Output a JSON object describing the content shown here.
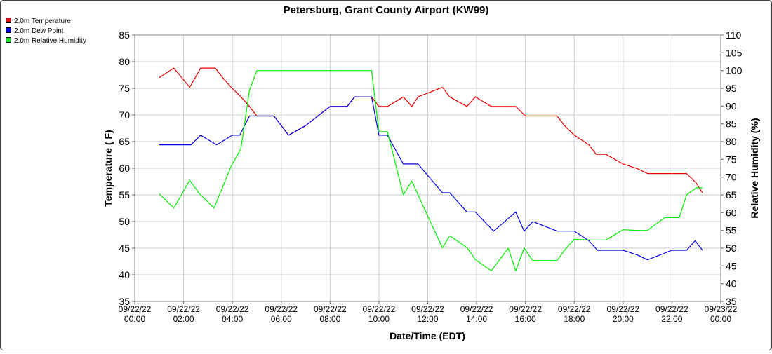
{
  "chart_data": {
    "type": "line",
    "title": "Petersburg, Grant County Airport (KW99)",
    "xlabel": "Date/Time (EDT)",
    "ylabel_left": "Temperature ( F)",
    "ylabel_right": "Relative Humidity (%)",
    "xlim_hours": [
      0,
      24
    ],
    "ylim_left": [
      35,
      85
    ],
    "ylim_right": [
      35,
      110
    ],
    "grid": true,
    "legend_position": "top-left",
    "x_ticks": [
      {
        "h": 0,
        "line1": "09/22/22",
        "line2": "00:00"
      },
      {
        "h": 2,
        "line1": "09/22/22",
        "line2": "02:00"
      },
      {
        "h": 4,
        "line1": "09/22/22",
        "line2": "04:00"
      },
      {
        "h": 6,
        "line1": "09/22/22",
        "line2": "06:00"
      },
      {
        "h": 8,
        "line1": "09/22/22",
        "line2": "08:00"
      },
      {
        "h": 10,
        "line1": "09/22/22",
        "line2": "10:00"
      },
      {
        "h": 12,
        "line1": "09/22/22",
        "line2": "12:00"
      },
      {
        "h": 14,
        "line1": "09/22/22",
        "line2": "14:00"
      },
      {
        "h": 16,
        "line1": "09/22/22",
        "line2": "16:00"
      },
      {
        "h": 18,
        "line1": "09/22/22",
        "line2": "18:00"
      },
      {
        "h": 20,
        "line1": "09/22/22",
        "line2": "20:00"
      },
      {
        "h": 22,
        "line1": "09/22/22",
        "line2": "22:00"
      },
      {
        "h": 24,
        "line1": "09/23/22",
        "line2": "00:00"
      }
    ],
    "y_ticks_left": [
      35,
      40,
      45,
      50,
      55,
      60,
      65,
      70,
      75,
      80,
      85
    ],
    "y_ticks_right": [
      35,
      40,
      45,
      50,
      55,
      60,
      65,
      70,
      75,
      80,
      85,
      90,
      95,
      100,
      105,
      110
    ],
    "series": [
      {
        "name": "2.0m Temperature",
        "axis": "left",
        "color": "#ee0000",
        "x": [
          1.0,
          1.6,
          2.25,
          2.7,
          3.05,
          3.3,
          3.6,
          3.95,
          4.35,
          4.7,
          5.0,
          5.7,
          6.3,
          7.0,
          8.0,
          8.7,
          9.0,
          9.35,
          9.7,
          10.0,
          10.35,
          11.0,
          11.35,
          11.6,
          12.6,
          12.9,
          13.6,
          13.95,
          14.6,
          15.3,
          15.6,
          16.0,
          16.3,
          17.3,
          17.6,
          18.0,
          18.6,
          18.9,
          19.3,
          20.0,
          20.6,
          21.0,
          22.0,
          22.3,
          22.6,
          23.0,
          23.25
        ],
        "y": [
          77.0,
          78.8,
          75.2,
          78.8,
          78.8,
          78.8,
          77.0,
          75.2,
          73.4,
          71.6,
          69.8,
          69.8,
          66.2,
          68.0,
          71.6,
          71.6,
          73.4,
          73.4,
          73.4,
          71.6,
          71.6,
          73.4,
          71.6,
          73.4,
          75.2,
          73.4,
          71.6,
          73.4,
          71.6,
          71.6,
          71.6,
          69.8,
          69.8,
          69.8,
          68.0,
          66.2,
          64.4,
          62.6,
          62.6,
          60.8,
          59.9,
          59.0,
          59.0,
          59.0,
          59.0,
          57.2,
          55.4
        ]
      },
      {
        "name": "2.0m Dew Point",
        "axis": "left",
        "color": "#0000ee",
        "x": [
          1.0,
          2.0,
          2.3,
          2.7,
          3.35,
          4.0,
          4.3,
          4.7,
          5.0,
          5.7,
          6.3,
          7.0,
          8.0,
          8.7,
          9.0,
          9.7,
          10.0,
          10.35,
          11.0,
          11.6,
          12.6,
          12.9,
          13.6,
          13.95,
          14.7,
          15.6,
          15.95,
          16.3,
          17.3,
          18.0,
          18.6,
          18.95,
          19.3,
          20.0,
          20.6,
          21.0,
          22.0,
          22.6,
          22.95,
          23.25
        ],
        "y": [
          64.4,
          64.4,
          64.4,
          66.2,
          64.4,
          66.2,
          66.2,
          69.8,
          69.8,
          69.8,
          66.2,
          68.0,
          71.6,
          71.6,
          73.4,
          73.4,
          66.2,
          66.2,
          60.8,
          60.8,
          55.4,
          55.4,
          51.8,
          51.8,
          48.2,
          51.8,
          48.2,
          50.0,
          48.2,
          48.2,
          46.4,
          44.6,
          44.6,
          44.6,
          43.7,
          42.8,
          44.6,
          44.6,
          46.4,
          44.6
        ]
      },
      {
        "name": "2.0m Relative Humidity",
        "axis": "right",
        "color": "#00ee00",
        "x": [
          1.0,
          1.6,
          2.25,
          2.65,
          3.25,
          3.95,
          4.35,
          4.7,
          5.0,
          6.0,
          8.0,
          9.7,
          10.0,
          10.35,
          11.0,
          11.35,
          11.6,
          12.6,
          12.9,
          13.6,
          13.95,
          14.6,
          15.3,
          15.6,
          15.95,
          16.3,
          17.3,
          17.6,
          18.0,
          18.6,
          19.3,
          20.0,
          20.6,
          21.0,
          21.7,
          22.3,
          22.6,
          23.0,
          23.25
        ],
        "y": [
          65.3,
          61.3,
          69.1,
          65.3,
          61.3,
          73.1,
          78.0,
          94.5,
          100.0,
          100.0,
          100.0,
          100.0,
          82.8,
          82.8,
          65.0,
          68.9,
          65.0,
          50.1,
          53.5,
          50.2,
          46.8,
          43.6,
          50.0,
          43.6,
          50.0,
          46.5,
          46.5,
          49.4,
          52.5,
          52.3,
          52.3,
          55.2,
          55.0,
          55.0,
          58.6,
          58.6,
          65.0,
          67.0,
          67.0
        ]
      }
    ]
  }
}
